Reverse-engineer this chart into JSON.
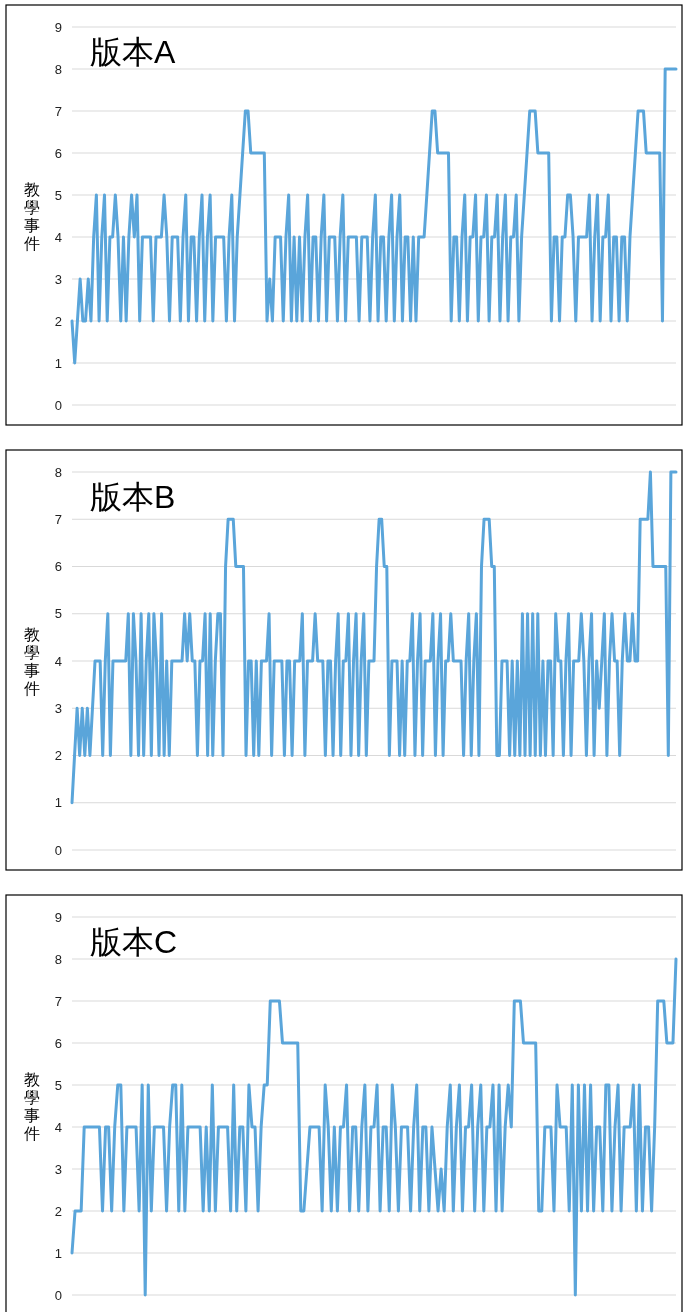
{
  "chart_data": [
    {
      "type": "line",
      "title": "版本A",
      "ylabel": "教學事件",
      "color": "#5aa5da",
      "grid": "y",
      "ylim": [
        0,
        9
      ],
      "yticks": [
        0,
        1,
        2,
        3,
        4,
        5,
        6,
        7,
        8,
        9
      ],
      "categories": [
        null,
        null,
        null,
        null,
        null,
        null,
        null,
        null,
        null,
        null,
        null,
        null,
        null,
        null,
        null,
        null,
        null,
        null,
        null,
        null,
        null,
        null,
        null,
        null,
        null,
        null,
        null,
        null,
        null,
        null,
        null,
        null,
        null,
        null,
        null,
        null,
        null,
        null,
        null,
        null,
        null,
        null,
        null,
        null,
        null,
        null,
        null,
        null,
        null,
        null,
        null,
        null,
        null,
        null,
        null,
        null,
        null,
        null,
        null,
        null,
        null,
        null,
        null,
        null,
        null,
        null,
        null,
        null,
        null,
        null,
        null,
        null,
        null,
        null,
        null,
        null,
        null,
        null,
        null,
        null,
        null,
        null,
        null,
        null,
        null,
        null,
        null,
        null,
        null,
        null,
        null,
        null,
        null,
        null,
        null,
        null,
        null,
        null,
        null,
        null,
        null,
        null,
        null,
        null,
        null,
        null,
        null,
        null,
        null,
        null,
        null,
        null,
        null,
        null,
        null,
        null,
        null,
        null,
        null,
        null,
        null,
        null,
        null,
        null,
        null,
        null,
        null,
        null,
        null,
        null,
        null,
        null,
        null,
        null,
        null,
        null,
        null,
        null,
        null,
        null,
        null,
        null,
        null,
        null,
        null,
        null,
        null,
        null,
        null,
        null,
        null,
        null,
        null,
        null,
        null,
        null,
        null,
        null,
        null,
        null,
        null,
        null,
        null,
        null,
        null,
        null,
        null,
        null,
        null,
        null,
        null,
        null,
        null,
        null,
        null,
        null,
        null,
        null,
        null,
        null,
        null,
        null,
        null,
        null,
        null,
        null,
        null,
        null,
        null,
        null,
        null,
        null,
        null,
        null,
        null,
        null,
        null,
        null,
        null,
        null,
        null,
        null,
        null,
        null,
        null,
        null,
        null,
        null,
        null,
        null,
        null,
        null,
        null,
        null,
        null,
        null,
        null,
        null,
        null,
        null,
        null,
        null,
        null,
        null
      ],
      "values": [
        2,
        1,
        2,
        3,
        2,
        2,
        3,
        2,
        4,
        5,
        2,
        4,
        5,
        2,
        4,
        4,
        5,
        4,
        2,
        4,
        2,
        4,
        5,
        4,
        5,
        2,
        4,
        4,
        4,
        4,
        2,
        4,
        4,
        4,
        5,
        4,
        2,
        4,
        4,
        4,
        2,
        4,
        5,
        2,
        4,
        4,
        2,
        4,
        5,
        2,
        4,
        5,
        2,
        4,
        4,
        4,
        4,
        2,
        4,
        5,
        2,
        4,
        5,
        6,
        7,
        7,
        6,
        6,
        6,
        6,
        6,
        6,
        2,
        3,
        2,
        4,
        4,
        4,
        2,
        4,
        5,
        2,
        4,
        2,
        4,
        2,
        4,
        5,
        2,
        4,
        4,
        2,
        4,
        5,
        2,
        4,
        4,
        4,
        2,
        4,
        5,
        2,
        4,
        4,
        4,
        4,
        2,
        4,
        4,
        4,
        2,
        4,
        5,
        2,
        4,
        4,
        2,
        4,
        5,
        2,
        4,
        5,
        2,
        4,
        4,
        2,
        4,
        2,
        4,
        4,
        4,
        5,
        6,
        7,
        7,
        6,
        6,
        6,
        6,
        6,
        2,
        4,
        4,
        2,
        4,
        5,
        2,
        4,
        4,
        5,
        2,
        4,
        4,
        5,
        2,
        4,
        4,
        5,
        2,
        4,
        5,
        2,
        4,
        4,
        5,
        2,
        4,
        5,
        6,
        7,
        7,
        7,
        6,
        6,
        6,
        6,
        6,
        2,
        4,
        4,
        2,
        4,
        4,
        5,
        5,
        4,
        2,
        4,
        4,
        4,
        4,
        5,
        2,
        4,
        5,
        2,
        4,
        4,
        5,
        2,
        4,
        4,
        2,
        4,
        4,
        2,
        4,
        5,
        6,
        7,
        7,
        7,
        6,
        6,
        6,
        6,
        6,
        6,
        2,
        8,
        8,
        8,
        8,
        8
      ]
    },
    {
      "type": "line",
      "title": "版本B",
      "ylabel": "教學事件",
      "color": "#5aa5da",
      "grid": "y",
      "ylim": [
        0,
        8
      ],
      "yticks": [
        0,
        1,
        2,
        3,
        4,
        5,
        6,
        7,
        8
      ],
      "categories": [
        null,
        null,
        null,
        null,
        null,
        null,
        null,
        null,
        null,
        null,
        null,
        null,
        null,
        null,
        null,
        null,
        null,
        null,
        null,
        null,
        null,
        null,
        null,
        null,
        null,
        null,
        null,
        null,
        null,
        null,
        null,
        null,
        null,
        null,
        null,
        null,
        null,
        null,
        null,
        null,
        null,
        null,
        null,
        null,
        null,
        null,
        null,
        null,
        null,
        null,
        null,
        null,
        null,
        null,
        null,
        null,
        null,
        null,
        null,
        null,
        null,
        null,
        null,
        null,
        null,
        null,
        null,
        null,
        null,
        null,
        null,
        null,
        null,
        null,
        null,
        null,
        null,
        null,
        null,
        null,
        null,
        null,
        null,
        null,
        null,
        null,
        null,
        null,
        null,
        null,
        null,
        null,
        null,
        null,
        null,
        null,
        null,
        null,
        null,
        null,
        null,
        null,
        null,
        null,
        null,
        null,
        null,
        null,
        null,
        null,
        null,
        null,
        null,
        null,
        null,
        null,
        null,
        null,
        null,
        null,
        null,
        null,
        null,
        null,
        null,
        null,
        null,
        null,
        null,
        null,
        null,
        null,
        null,
        null,
        null,
        null,
        null,
        null,
        null,
        null,
        null,
        null,
        null,
        null,
        null,
        null,
        null,
        null,
        null,
        null,
        null,
        null,
        null,
        null,
        null,
        null,
        null,
        null,
        null,
        null,
        null,
        null,
        null,
        null,
        null,
        null,
        null,
        null,
        null,
        null,
        null,
        null,
        null,
        null,
        null,
        null,
        null,
        null,
        null,
        null,
        null,
        null,
        null,
        null,
        null,
        null,
        null,
        null,
        null,
        null,
        null,
        null,
        null,
        null,
        null,
        null,
        null,
        null,
        null,
        null,
        null,
        null,
        null,
        null,
        null,
        null,
        null,
        null,
        null,
        null,
        null,
        null,
        null,
        null,
        null,
        null,
        null,
        null,
        null,
        null,
        null,
        null,
        null,
        null,
        null,
        null,
        null,
        null,
        null,
        null,
        null,
        null,
        null,
        null,
        null,
        null,
        null
      ],
      "values": [
        1,
        2,
        3,
        2,
        3,
        2,
        3,
        2,
        3,
        4,
        4,
        4,
        2,
        4,
        5,
        2,
        4,
        4,
        4,
        4,
        4,
        4,
        5,
        2,
        5,
        4,
        2,
        5,
        2,
        4,
        5,
        2,
        5,
        4,
        2,
        5,
        2,
        4,
        2,
        4,
        4,
        4,
        4,
        4,
        5,
        4,
        5,
        4,
        4,
        2,
        4,
        4,
        5,
        2,
        5,
        2,
        4,
        5,
        5,
        2,
        6,
        7,
        7,
        7,
        6,
        6,
        6,
        6,
        2,
        4,
        4,
        2,
        4,
        2,
        4,
        4,
        4,
        5,
        2,
        4,
        4,
        4,
        4,
        2,
        4,
        4,
        2,
        4,
        4,
        4,
        5,
        2,
        4,
        4,
        4,
        5,
        4,
        4,
        4,
        2,
        4,
        4,
        2,
        4,
        5,
        2,
        4,
        4,
        5,
        2,
        4,
        5,
        2,
        4,
        5,
        2,
        4,
        4,
        4,
        6,
        7,
        7,
        6,
        6,
        2,
        4,
        4,
        4,
        2,
        4,
        2,
        4,
        4,
        5,
        2,
        4,
        5,
        2,
        4,
        4,
        4,
        5,
        2,
        4,
        5,
        2,
        4,
        4,
        5,
        4,
        4,
        4,
        4,
        2,
        4,
        5,
        2,
        4,
        5,
        2,
        6,
        7,
        7,
        7,
        6,
        6,
        2,
        2,
        4,
        4,
        4,
        2,
        4,
        2,
        4,
        2,
        5,
        2,
        5,
        2,
        5,
        2,
        5,
        2,
        4,
        2,
        4,
        4,
        2,
        5,
        4,
        4,
        2,
        4,
        5,
        2,
        4,
        4,
        4,
        5,
        4,
        2,
        4,
        5,
        2,
        4,
        3,
        4,
        5,
        2,
        4,
        5,
        4,
        4,
        2,
        4,
        5,
        4,
        4,
        5,
        4,
        4,
        7,
        7,
        7,
        7,
        8,
        6,
        6,
        6,
        6,
        6,
        6,
        2,
        8,
        8,
        8
      ]
    },
    {
      "type": "line",
      "title": "版本C",
      "ylabel": "教學事件",
      "color": "#5aa5da",
      "grid": "y",
      "ylim": [
        0,
        9
      ],
      "yticks": [
        0,
        1,
        2,
        3,
        4,
        5,
        6,
        7,
        8,
        9
      ],
      "categories": [
        null,
        null,
        null,
        null,
        null,
        null,
        null,
        null,
        null,
        null,
        null,
        null,
        null,
        null,
        null,
        null,
        null,
        null,
        null,
        null,
        null,
        null,
        null,
        null,
        null,
        null,
        null,
        null,
        null,
        null,
        null,
        null,
        null,
        null,
        null,
        null,
        null,
        null,
        null,
        null,
        null,
        null,
        null,
        null,
        null,
        null,
        null,
        null,
        null,
        null,
        null,
        null,
        null,
        null,
        null,
        null,
        null,
        null,
        null,
        null,
        null,
        null,
        null,
        null,
        null,
        null,
        null,
        null,
        null,
        null,
        null,
        null,
        null,
        null,
        null,
        null,
        null,
        null,
        null,
        null,
        null,
        null,
        null,
        null,
        null,
        null,
        null,
        null,
        null,
        null,
        null,
        null,
        null,
        null,
        null,
        null,
        null,
        null,
        null,
        null,
        null,
        null,
        null,
        null,
        null,
        null,
        null,
        null,
        null,
        null,
        null,
        null,
        null,
        null,
        null,
        null,
        null,
        null,
        null,
        null,
        null,
        null,
        null,
        null,
        null,
        null,
        null,
        null,
        null,
        null,
        null,
        null,
        null,
        null,
        null,
        null,
        null,
        null,
        null,
        null,
        null,
        null,
        null,
        null,
        null,
        null,
        null,
        null,
        null,
        null,
        null,
        null,
        null,
        null,
        null,
        null,
        null,
        null,
        null,
        null,
        null,
        null,
        null,
        null,
        null,
        null,
        null,
        null,
        null,
        null,
        null,
        null,
        null,
        null,
        null,
        null,
        null,
        null,
        null,
        null,
        null,
        null,
        null,
        null,
        null,
        null,
        null,
        null,
        null,
        null,
        null,
        null,
        null,
        null,
        null,
        null,
        null,
        null,
        null
      ],
      "values": [
        1,
        2,
        2,
        2,
        4,
        4,
        4,
        4,
        4,
        4,
        2,
        4,
        4,
        2,
        4,
        5,
        5,
        2,
        4,
        4,
        4,
        4,
        2,
        5,
        0,
        5,
        2,
        4,
        4,
        4,
        4,
        2,
        4,
        5,
        5,
        2,
        5,
        2,
        4,
        4,
        4,
        4,
        4,
        2,
        4,
        2,
        5,
        2,
        4,
        4,
        4,
        4,
        2,
        5,
        2,
        4,
        4,
        2,
        5,
        4,
        4,
        2,
        4,
        5,
        5,
        7,
        7,
        7,
        7,
        6,
        6,
        6,
        6,
        6,
        6,
        2,
        2,
        3,
        4,
        4,
        4,
        4,
        2,
        5,
        4,
        2,
        4,
        2,
        4,
        4,
        5,
        2,
        4,
        4,
        2,
        4,
        5,
        2,
        4,
        4,
        5,
        2,
        4,
        4,
        2,
        5,
        4,
        2,
        4,
        4,
        4,
        2,
        4,
        5,
        2,
        4,
        4,
        2,
        4,
        3,
        2,
        3,
        2,
        4,
        5,
        2,
        4,
        5,
        2,
        4,
        4,
        5,
        2,
        4,
        5,
        2,
        4,
        4,
        5,
        2,
        5,
        2,
        4,
        5,
        4,
        7,
        7,
        7,
        6,
        6,
        6,
        6,
        6,
        2,
        2,
        4,
        4,
        4,
        2,
        5,
        4,
        4,
        4,
        2,
        5,
        0,
        5,
        2,
        5,
        2,
        5,
        2,
        4,
        4,
        2,
        5,
        5,
        2,
        4,
        5,
        2,
        4,
        4,
        4,
        5,
        2,
        5,
        2,
        4,
        4,
        2,
        4,
        7,
        7,
        7,
        6,
        6,
        6,
        8
      ]
    }
  ]
}
